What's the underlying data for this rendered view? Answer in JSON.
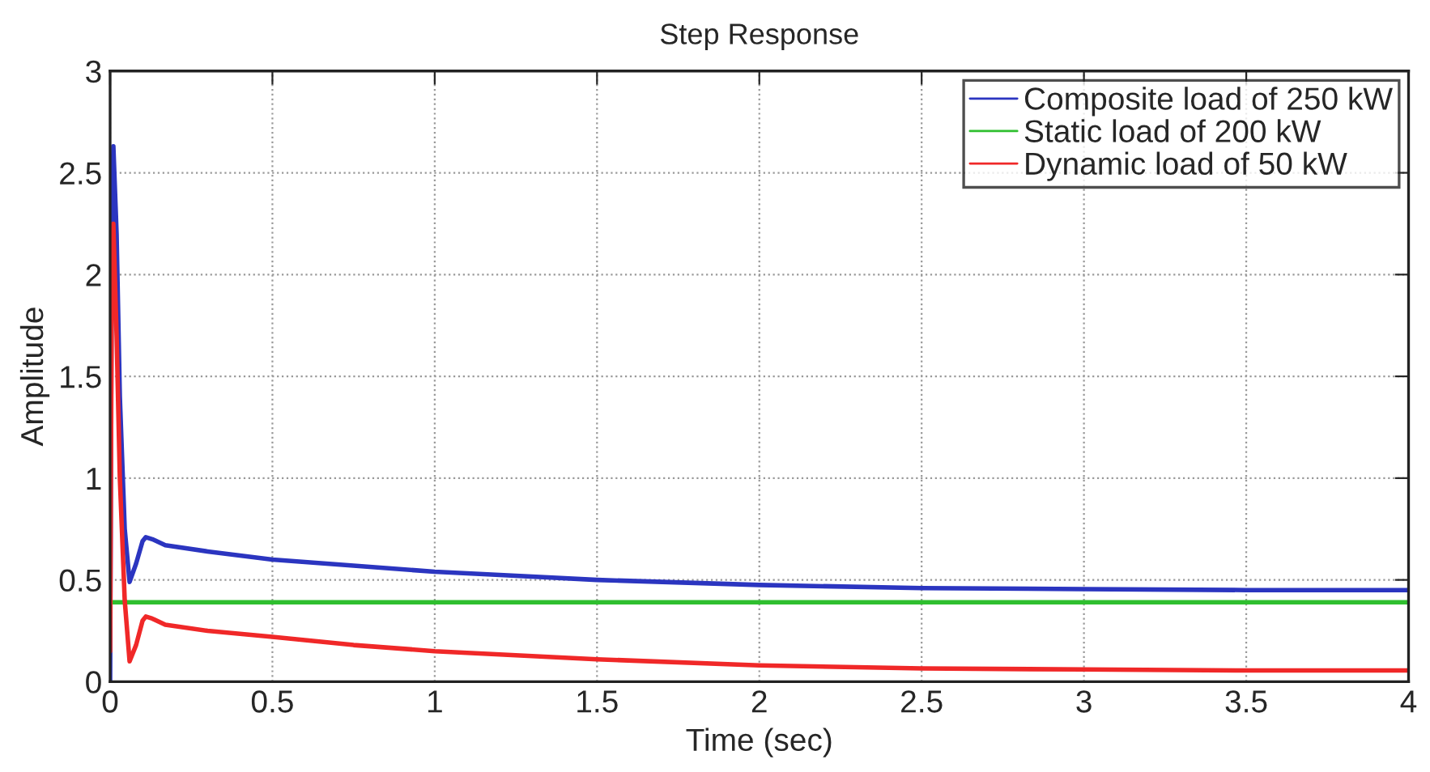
{
  "chart_data": {
    "type": "line",
    "title": "Step Response",
    "xlabel": "Time (sec)",
    "ylabel": "Amplitude",
    "xlim": [
      0,
      4
    ],
    "ylim": [
      0,
      3
    ],
    "xticks": [
      0,
      0.5,
      1,
      1.5,
      2,
      2.5,
      3,
      3.5,
      4
    ],
    "yticks": [
      0,
      0.5,
      1,
      1.5,
      2,
      2.5,
      3
    ],
    "grid": true,
    "legend": "top right",
    "line_style": "solid",
    "series": [
      {
        "name": "Composite load of 250 kW",
        "color": "#2b35c0",
        "x": [
          0,
          0.005,
          0.01,
          0.02,
          0.03,
          0.045,
          0.06,
          0.08,
          0.1,
          0.11,
          0.13,
          0.17,
          0.3,
          0.5,
          0.75,
          1,
          1.25,
          1.5,
          2,
          2.5,
          3,
          3.5,
          4
        ],
        "values": [
          0,
          2.2,
          2.63,
          2.2,
          1.4,
          0.75,
          0.49,
          0.58,
          0.69,
          0.71,
          0.7,
          0.67,
          0.64,
          0.6,
          0.57,
          0.54,
          0.52,
          0.5,
          0.475,
          0.46,
          0.455,
          0.45,
          0.45
        ]
      },
      {
        "name": "Static load of 200 kW",
        "color": "#2fbf2f",
        "x": [
          0,
          4
        ],
        "values": [
          0.39,
          0.39
        ]
      },
      {
        "name": "Dynamic load of 50 kW",
        "color": "#f02828",
        "x": [
          0,
          0.005,
          0.01,
          0.02,
          0.03,
          0.045,
          0.06,
          0.08,
          0.1,
          0.11,
          0.13,
          0.17,
          0.3,
          0.5,
          0.75,
          1,
          1.25,
          1.5,
          2,
          2.5,
          3,
          3.5,
          4
        ],
        "values": [
          0.15,
          1.9,
          2.25,
          1.7,
          1.0,
          0.4,
          0.1,
          0.18,
          0.3,
          0.32,
          0.31,
          0.28,
          0.25,
          0.22,
          0.18,
          0.15,
          0.13,
          0.11,
          0.08,
          0.065,
          0.06,
          0.055,
          0.055
        ]
      }
    ]
  }
}
